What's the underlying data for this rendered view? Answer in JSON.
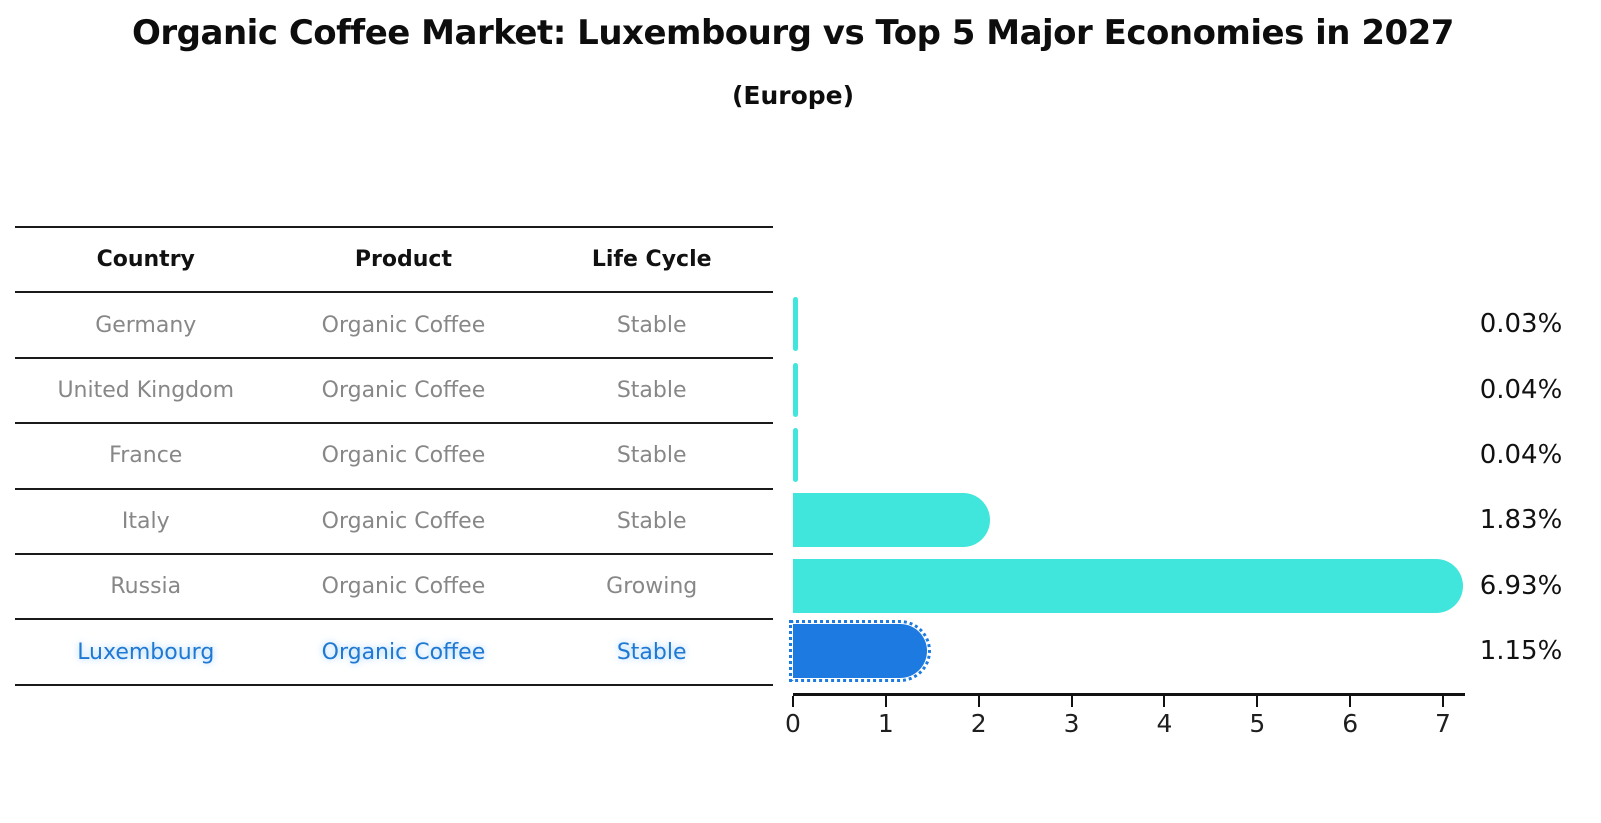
{
  "title": "Organic Coffee Market: Luxembourg vs Top 5 Major Economies in 2027",
  "subtitle": "(Europe)",
  "table": {
    "headers": [
      "Country",
      "Product",
      "Life Cycle"
    ],
    "rows": [
      {
        "country": "Germany",
        "product": "Organic Coffee",
        "life_cycle": "Stable",
        "highlight": false
      },
      {
        "country": "United Kingdom",
        "product": "Organic Coffee",
        "life_cycle": "Stable",
        "highlight": false
      },
      {
        "country": "France",
        "product": "Organic Coffee",
        "life_cycle": "Stable",
        "highlight": false
      },
      {
        "country": "Italy",
        "product": "Organic Coffee",
        "life_cycle": "Stable",
        "highlight": false
      },
      {
        "country": "Russia",
        "product": "Organic Coffee",
        "life_cycle": "Growing",
        "highlight": false
      },
      {
        "country": "Luxembourg",
        "product": "Organic Coffee",
        "life_cycle": "Stable",
        "highlight": true
      }
    ]
  },
  "chart_data": {
    "type": "bar",
    "orientation": "horizontal",
    "title": "Organic Coffee Market: Luxembourg vs Top 5 Major Economies in 2027 (Europe)",
    "categories": [
      "Germany",
      "United Kingdom",
      "France",
      "Italy",
      "Russia",
      "Luxembourg"
    ],
    "values": [
      0.03,
      0.04,
      0.04,
      1.83,
      6.93,
      1.15
    ],
    "value_labels": [
      "0.03%",
      "0.04%",
      "0.04%",
      "1.83%",
      "6.93%",
      "1.15%"
    ],
    "x_ticks": [
      "0",
      "1",
      "2",
      "3",
      "4",
      "5",
      "6",
      "7"
    ],
    "xlim": [
      0,
      7.24
    ],
    "grid": false,
    "legend": "none",
    "highlight_index": 5
  },
  "colors": {
    "bar_default": "#40e5dc",
    "bar_highlight": "#1d7ae0",
    "highlight_text": "#1f78d1",
    "table_text": "#878787",
    "header_text": "#111111",
    "label_text": "#111111"
  }
}
